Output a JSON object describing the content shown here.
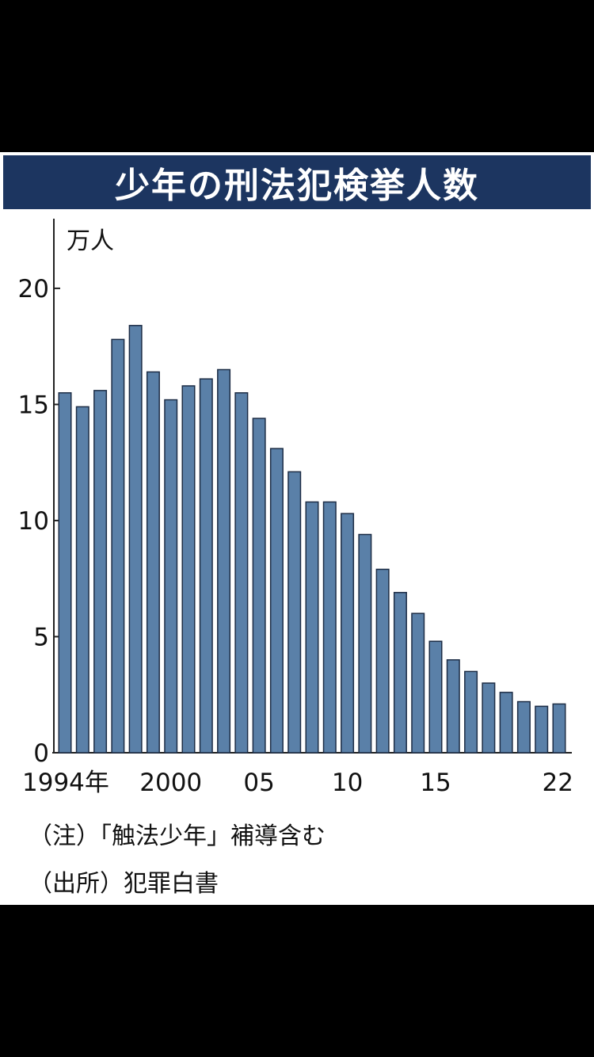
{
  "title": "少年の刑法犯検挙人数",
  "notes": [
    "（注）「触法少年」補導含む",
    "（出所）犯罪白書"
  ],
  "colors": {
    "title_bg": "#1c3560",
    "bar_fill": "#5a80a8",
    "bar_stroke": "#1d2d45",
    "page_bg": "#000000",
    "card_bg": "#ffffff"
  },
  "chart_data": {
    "type": "bar",
    "title": "少年の刑法犯検挙人数",
    "ylabel": "万人",
    "xlabel": "",
    "ylim": [
      0,
      23
    ],
    "yticks": [
      0,
      5,
      10,
      15,
      20
    ],
    "grid": false,
    "categories": [
      "1994",
      "1995",
      "1996",
      "1997",
      "1998",
      "1999",
      "2000",
      "2001",
      "2002",
      "2003",
      "2004",
      "2005",
      "2006",
      "2007",
      "2008",
      "2009",
      "2010",
      "2011",
      "2012",
      "2013",
      "2014",
      "2015",
      "2016",
      "2017",
      "2018",
      "2019",
      "2020",
      "2021",
      "2022"
    ],
    "xtick_labels": [
      {
        "category": "1994",
        "text": "1994年"
      },
      {
        "category": "2000",
        "text": "2000"
      },
      {
        "category": "2005",
        "text": "05"
      },
      {
        "category": "2010",
        "text": "10"
      },
      {
        "category": "2015",
        "text": "15"
      },
      {
        "category": "2022",
        "text": "22"
      }
    ],
    "values": [
      15.5,
      14.9,
      15.6,
      17.8,
      18.4,
      16.4,
      15.2,
      15.8,
      16.1,
      16.5,
      15.5,
      14.4,
      13.1,
      12.1,
      10.8,
      10.8,
      10.3,
      9.4,
      7.9,
      6.9,
      6.0,
      4.8,
      4.0,
      3.5,
      3.0,
      2.6,
      2.2,
      2.0,
      2.1
    ]
  }
}
